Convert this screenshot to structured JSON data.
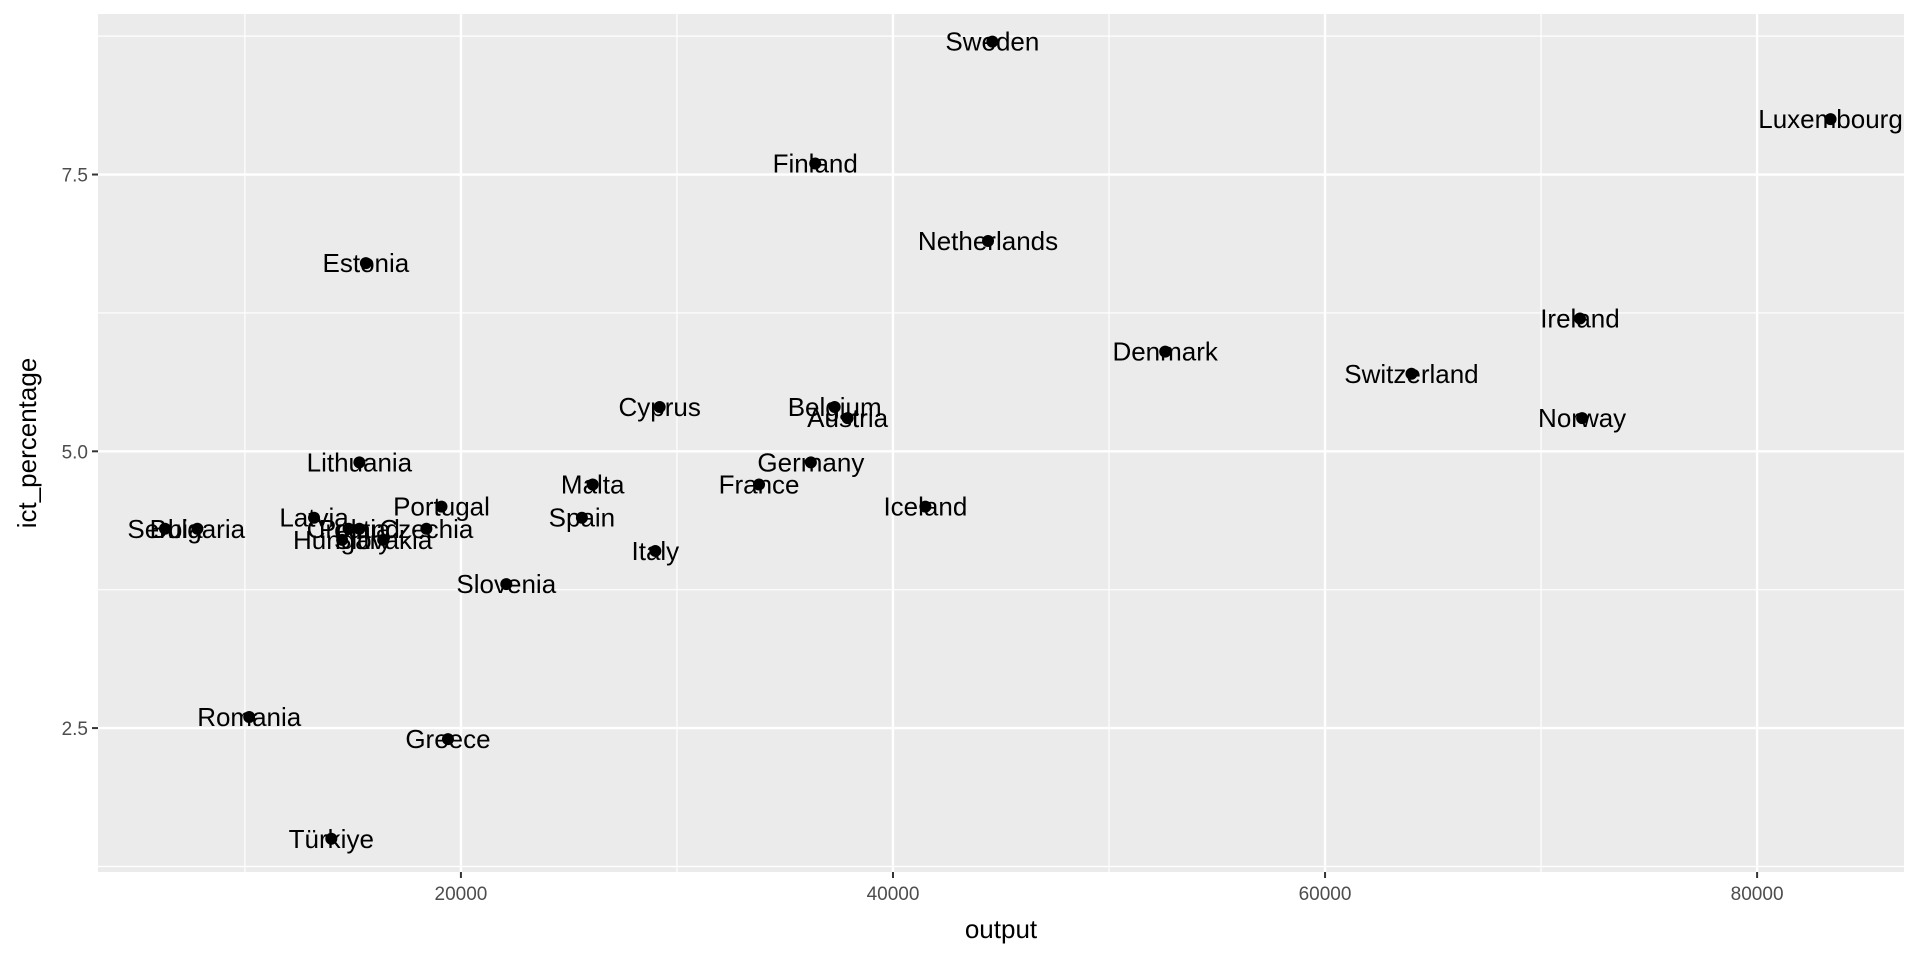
{
  "chart_data": {
    "type": "scatter",
    "xlabel": "output",
    "ylabel": "ict_percentage",
    "xlim": [
      3200,
      86800
    ],
    "ylim": [
      1.2,
      8.95
    ],
    "x_ticks": [
      20000,
      40000,
      60000,
      80000
    ],
    "x_tick_labels": [
      "20000",
      "40000",
      "60000",
      "80000"
    ],
    "y_ticks": [
      2.5,
      5.0,
      7.5
    ],
    "y_tick_labels": [
      "2.5",
      "5.0",
      "7.5"
    ],
    "grid": true,
    "point_color": "#000000",
    "panel_color": "#ebebeb",
    "grid_color": "#ffffff",
    "points": [
      {
        "label": "Sweden",
        "x": 44600,
        "y": 8.7
      },
      {
        "label": "Luxembourg",
        "x": 83400,
        "y": 8.0
      },
      {
        "label": "Finland",
        "x": 36400,
        "y": 7.6
      },
      {
        "label": "Netherlands",
        "x": 44400,
        "y": 6.9
      },
      {
        "label": "Estonia",
        "x": 15600,
        "y": 6.7
      },
      {
        "label": "Ireland",
        "x": 71800,
        "y": 6.2
      },
      {
        "label": "Denmark",
        "x": 52600,
        "y": 5.9
      },
      {
        "label": "Switzerland",
        "x": 64000,
        "y": 5.7
      },
      {
        "label": "Cyprus",
        "x": 29200,
        "y": 5.4
      },
      {
        "label": "Belgium",
        "x": 37300,
        "y": 5.4
      },
      {
        "label": "Austria",
        "x": 37900,
        "y": 5.3
      },
      {
        "label": "Norway",
        "x": 71900,
        "y": 5.3
      },
      {
        "label": "Lithuania",
        "x": 15300,
        "y": 4.9
      },
      {
        "label": "Germany",
        "x": 36200,
        "y": 4.9
      },
      {
        "label": "Malta",
        "x": 26100,
        "y": 4.7
      },
      {
        "label": "France",
        "x": 33800,
        "y": 4.7
      },
      {
        "label": "Portugal",
        "x": 19100,
        "y": 4.5
      },
      {
        "label": "Iceland",
        "x": 41500,
        "y": 4.5
      },
      {
        "label": "Spain",
        "x": 25600,
        "y": 4.4
      },
      {
        "label": "Latvia",
        "x": 13200,
        "y": 4.4
      },
      {
        "label": "Serbia",
        "x": 6300,
        "y": 4.3
      },
      {
        "label": "Bulgaria",
        "x": 7800,
        "y": 4.3
      },
      {
        "label": "Croatia",
        "x": 14800,
        "y": 4.3
      },
      {
        "label": "Poland",
        "x": 15300,
        "y": 4.3
      },
      {
        "label": "Czechia",
        "x": 18400,
        "y": 4.3
      },
      {
        "label": "Slovakia",
        "x": 16400,
        "y": 4.2
      },
      {
        "label": "Hungary",
        "x": 14500,
        "y": 4.2
      },
      {
        "label": "Italy",
        "x": 29000,
        "y": 4.1
      },
      {
        "label": "Slovenia",
        "x": 22100,
        "y": 3.8
      },
      {
        "label": "Romania",
        "x": 10200,
        "y": 2.6
      },
      {
        "label": "Greece",
        "x": 19400,
        "y": 2.4
      },
      {
        "label": "Türkiye",
        "x": 14000,
        "y": 1.5
      }
    ]
  }
}
